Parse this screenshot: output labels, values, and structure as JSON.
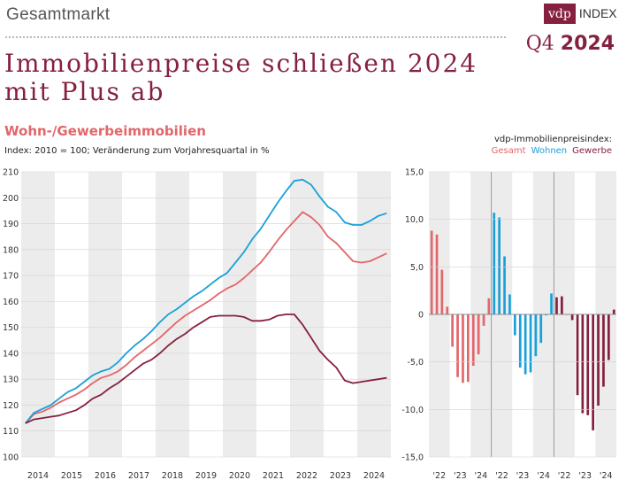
{
  "header": {
    "section": "Gesamtmarkt",
    "logo_brand": "vdp",
    "logo_suffix": "INDEX",
    "quarter_label": "Q4",
    "quarter_year": "2024",
    "title_line1": "Immobilienpreise schließen 2024",
    "title_line2": "mit Plus ab",
    "subtitle": "Wohn-/Gewerbeimmobilien",
    "index_note": "Index: 2010 = 100; Veränderung zum Vorjahresquartal in %"
  },
  "legend": {
    "title": "vdp-Immobilienpreisindex:",
    "items": [
      {
        "label": "Gesamt",
        "color": "#e2666a"
      },
      {
        "label": "Wohnen",
        "color": "#1aa0d8"
      },
      {
        "label": "Gewerbe",
        "color": "#86203f"
      }
    ]
  },
  "chart_data": [
    {
      "type": "line",
      "title": "Wohn-/Gewerbeimmobilien",
      "ylabel": "Index: 2010 = 100",
      "ylim": [
        100,
        210
      ],
      "yticks": [
        100,
        110,
        120,
        130,
        140,
        150,
        160,
        170,
        180,
        190,
        200,
        210
      ],
      "xticks": [
        "2014",
        "2015",
        "2016",
        "2017",
        "2018",
        "2019",
        "2020",
        "2021",
        "2022",
        "2023",
        "2024"
      ],
      "x_start": "2014 Q1",
      "series": [
        {
          "name": "Gesamt",
          "color": "#e2666a",
          "values": [
            113,
            116.5,
            117.5,
            119,
            121,
            122.5,
            124,
            126,
            128.5,
            130.5,
            131.5,
            133,
            135.5,
            138.5,
            141,
            143.5,
            146,
            149,
            152,
            154.5,
            156.5,
            158.5,
            160.5,
            163,
            165,
            166.5,
            169,
            172,
            175,
            179,
            183.5,
            187.5,
            191,
            194.5,
            192.5,
            189.5,
            185,
            182.5,
            179,
            175.5,
            175,
            175.5,
            177,
            178.5
          ]
        },
        {
          "name": "Wohnen",
          "color": "#1aa0d8",
          "values": [
            113,
            117,
            118.5,
            120,
            122.5,
            125,
            126.5,
            129,
            131.5,
            133,
            134,
            136.5,
            140,
            143,
            145.5,
            148.5,
            152,
            155,
            157,
            159.5,
            162,
            164,
            166.5,
            169,
            171,
            175,
            179,
            184,
            188,
            193,
            198,
            202.5,
            206.5,
            207,
            205,
            200.5,
            196.5,
            194.5,
            190.5,
            189.5,
            189.5,
            191,
            193,
            194
          ]
        },
        {
          "name": "Gewerbe",
          "color": "#86203f",
          "values": [
            113,
            114.5,
            115,
            115.5,
            116,
            117,
            118,
            120,
            122.5,
            124,
            126.5,
            128.5,
            131,
            133.5,
            136,
            137.5,
            140,
            143,
            145.5,
            147.5,
            150,
            152,
            154,
            154.5,
            154.5,
            154.5,
            154,
            152.5,
            152.5,
            153,
            154.5,
            155,
            155,
            151,
            146,
            141,
            137.5,
            134.5,
            129.5,
            128.5,
            129,
            129.5,
            130,
            130.5
          ]
        }
      ]
    },
    {
      "type": "bar",
      "title": "Veränderung zum Vorjahresquartal in %",
      "ylim": [
        -15,
        15
      ],
      "yticks": [
        "15,0",
        "10,0",
        "5,0",
        "0",
        "-5,0",
        "-10,0",
        "-15,0"
      ],
      "ytick_values": [
        15,
        10,
        5,
        0,
        -5,
        -10,
        -15
      ],
      "groups": [
        {
          "name": "Gesamt",
          "color": "#e2666a",
          "xticks": [
            "'22",
            "'23",
            "'24"
          ],
          "values": [
            8.8,
            8.4,
            4.7,
            0.8,
            -3.4,
            -6.6,
            -7.2,
            -7.1,
            -5.4,
            -4.2,
            -1.2,
            1.7
          ]
        },
        {
          "name": "Wohnen",
          "color": "#1aa0d8",
          "xticks": [
            "'22",
            "'23",
            "'24"
          ],
          "values": [
            10.7,
            10.2,
            6.1,
            2.1,
            -2.2,
            -5.6,
            -6.3,
            -6.1,
            -4.4,
            -3.0,
            -0.1,
            2.2
          ]
        },
        {
          "name": "Gewerbe",
          "color": "#86203f",
          "xticks": [
            "'22",
            "'23",
            "'24"
          ],
          "values": [
            1.8,
            1.9,
            0.0,
            -0.6,
            -8.5,
            -10.4,
            -10.6,
            -12.2,
            -9.6,
            -7.6,
            -4.8,
            0.5
          ]
        }
      ]
    }
  ]
}
